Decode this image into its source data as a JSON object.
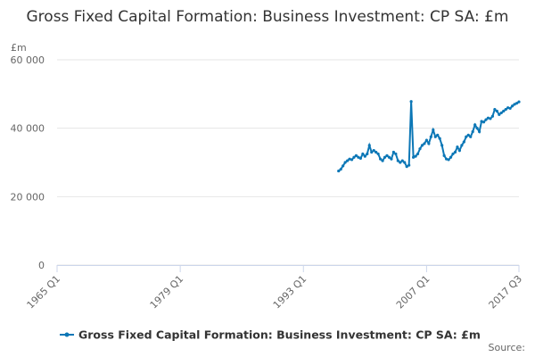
{
  "chart_data": {
    "type": "line",
    "title": "Gross Fixed Capital Formation: Business Investment: CP SA: £m",
    "y_label": "£m",
    "source": "Source:",
    "categories": [
      "1965 Q1",
      null,
      null,
      null,
      null,
      null,
      null,
      null,
      null,
      null,
      null,
      null,
      null,
      null,
      null,
      null,
      null,
      null,
      null,
      null,
      null,
      null,
      null,
      null,
      null,
      null,
      null,
      null,
      null,
      null,
      null,
      null,
      null,
      null,
      null,
      null,
      null,
      null,
      null,
      null,
      null,
      null,
      null,
      null,
      null,
      null,
      null,
      null,
      null,
      null,
      null,
      null,
      null,
      null,
      null,
      null,
      "1979 Q1",
      null,
      null,
      null,
      null,
      null,
      null,
      null,
      null,
      null,
      null,
      null,
      null,
      null,
      null,
      null,
      null,
      null,
      null,
      null,
      null,
      null,
      null,
      null,
      null,
      null,
      null,
      null,
      null,
      null,
      null,
      null,
      null,
      null,
      null,
      null,
      null,
      null,
      null,
      null,
      null,
      null,
      null,
      null,
      null,
      null,
      null,
      null,
      null,
      null,
      null,
      null,
      null,
      null,
      null,
      null,
      "1993 Q1",
      null,
      null,
      null,
      null,
      null,
      null,
      null,
      null,
      null,
      null,
      null,
      null,
      null,
      null,
      null,
      null,
      null,
      null,
      null,
      null,
      null,
      null,
      null,
      null,
      null,
      null,
      null,
      null,
      null,
      null,
      null,
      null,
      null,
      null,
      null,
      null,
      null,
      null,
      null,
      null,
      null,
      null,
      null,
      null,
      null,
      null,
      null,
      null,
      null,
      null,
      null,
      null,
      null,
      null,
      null,
      "2007 Q1",
      null,
      null,
      null,
      null,
      null,
      null,
      null,
      null,
      null,
      null,
      null,
      null,
      null,
      null,
      null,
      null,
      null,
      null,
      null,
      null,
      null,
      null,
      null,
      null,
      null,
      null,
      null,
      null,
      null,
      null,
      null,
      null,
      null,
      null,
      null,
      null,
      null,
      null,
      null,
      null,
      null,
      "2017 Q3"
    ],
    "series": [
      {
        "name": "Gross Fixed Capital Formation: Business Investment: CP SA: £m",
        "color": "#0c77b6",
        "values": [
          null,
          null,
          null,
          null,
          null,
          null,
          null,
          null,
          null,
          null,
          null,
          null,
          null,
          null,
          null,
          null,
          null,
          null,
          null,
          null,
          null,
          null,
          null,
          null,
          null,
          null,
          null,
          null,
          null,
          null,
          null,
          null,
          null,
          null,
          null,
          null,
          null,
          null,
          null,
          null,
          null,
          null,
          null,
          null,
          null,
          null,
          null,
          null,
          null,
          null,
          null,
          null,
          null,
          null,
          null,
          null,
          null,
          null,
          null,
          null,
          null,
          null,
          null,
          null,
          null,
          null,
          null,
          null,
          null,
          null,
          null,
          null,
          null,
          null,
          null,
          null,
          null,
          null,
          null,
          null,
          null,
          null,
          null,
          null,
          null,
          null,
          null,
          null,
          null,
          null,
          null,
          null,
          null,
          null,
          null,
          null,
          null,
          null,
          null,
          null,
          null,
          null,
          null,
          null,
          null,
          null,
          null,
          null,
          null,
          null,
          null,
          null,
          null,
          null,
          null,
          null,
          null,
          null,
          null,
          null,
          null,
          null,
          null,
          null,
          null,
          null,
          null,
          null,
          27500,
          28000,
          29000,
          30000,
          30500,
          31000,
          30800,
          31500,
          32000,
          31500,
          31200,
          32500,
          31800,
          32500,
          35000,
          33000,
          33500,
          33000,
          32500,
          31000,
          30500,
          31500,
          32000,
          31500,
          31000,
          33000,
          32500,
          30500,
          30000,
          30500,
          30000,
          28800,
          29200,
          47800,
          31500,
          31800,
          32500,
          34000,
          35000,
          35500,
          36500,
          35500,
          37500,
          39500,
          37500,
          38000,
          37000,
          35000,
          32000,
          31000,
          30800,
          31500,
          32500,
          33000,
          34500,
          33500,
          35000,
          36000,
          37500,
          38000,
          37500,
          39000,
          41000,
          40000,
          39000,
          42000,
          41800,
          42500,
          43000,
          42800,
          43500,
          45500,
          45000,
          44000,
          44500,
          45000,
          45500,
          46000,
          45800,
          46500,
          47000,
          47300,
          47700
        ]
      }
    ],
    "ylim": [
      0,
      60000
    ],
    "yticks": [
      0,
      {
        "value": 20000,
        "label": "20 000"
      },
      {
        "value": 40000,
        "label": "40 000"
      },
      {
        "value": 60000,
        "label": "60 000"
      }
    ],
    "grid": true
  }
}
